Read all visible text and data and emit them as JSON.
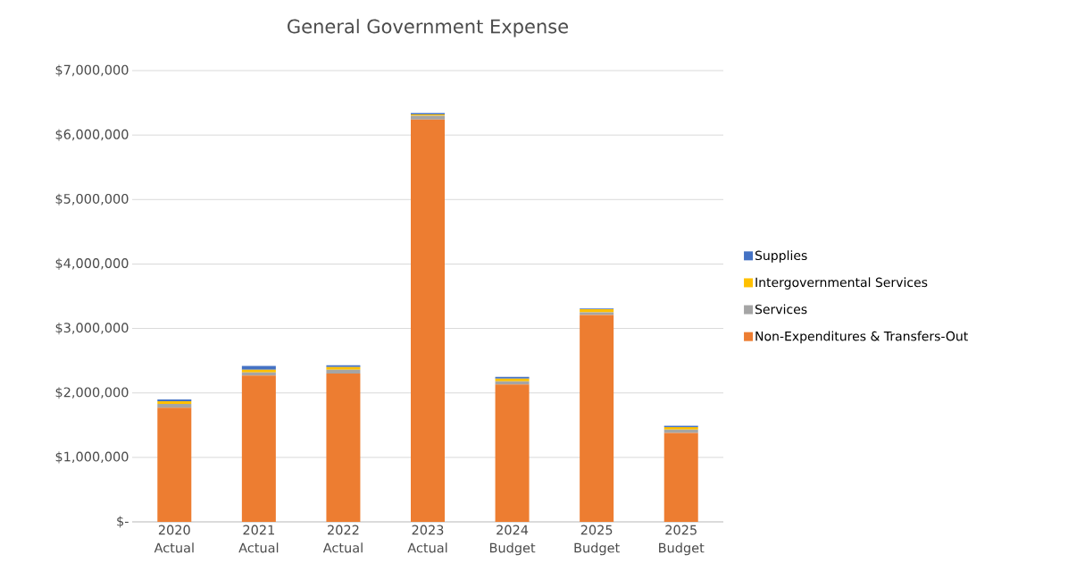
{
  "chart_data": {
    "type": "bar",
    "stacked": true,
    "title": "General Government Expense",
    "categories": [
      "2020 Actual",
      "2021 Actual",
      "2022 Actual",
      "2023 Actual",
      "2024 Budget",
      "2025 Budget",
      "2025 Budget"
    ],
    "series": [
      {
        "name": "Non-Expenditures & Transfers-Out",
        "color": "#ed7d31",
        "values": [
          1770000,
          2270000,
          2300000,
          6240000,
          2130000,
          3210000,
          1380000
        ]
      },
      {
        "name": "Services",
        "color": "#a5a5a5",
        "values": [
          60000,
          50000,
          60000,
          60000,
          50000,
          40000,
          50000
        ]
      },
      {
        "name": "Intergovernmental Services",
        "color": "#ffc000",
        "values": [
          40000,
          40000,
          40000,
          20000,
          40000,
          50000,
          40000
        ]
      },
      {
        "name": "Supplies",
        "color": "#4472c4",
        "values": [
          30000,
          60000,
          30000,
          20000,
          30000,
          10000,
          20000
        ]
      }
    ],
    "ylim": [
      0,
      7000000
    ],
    "yticks": [
      {
        "value": 0,
        "label": "$-"
      },
      {
        "value": 1000000,
        "label": "$1,000,000"
      },
      {
        "value": 2000000,
        "label": "$2,000,000"
      },
      {
        "value": 3000000,
        "label": "$3,000,000"
      },
      {
        "value": 4000000,
        "label": "$4,000,000"
      },
      {
        "value": 5000000,
        "label": "$5,000,000"
      },
      {
        "value": 6000000,
        "label": "$6,000,000"
      },
      {
        "value": 7000000,
        "label": "$7,000,000"
      }
    ],
    "grid": "y",
    "legend": "right"
  }
}
